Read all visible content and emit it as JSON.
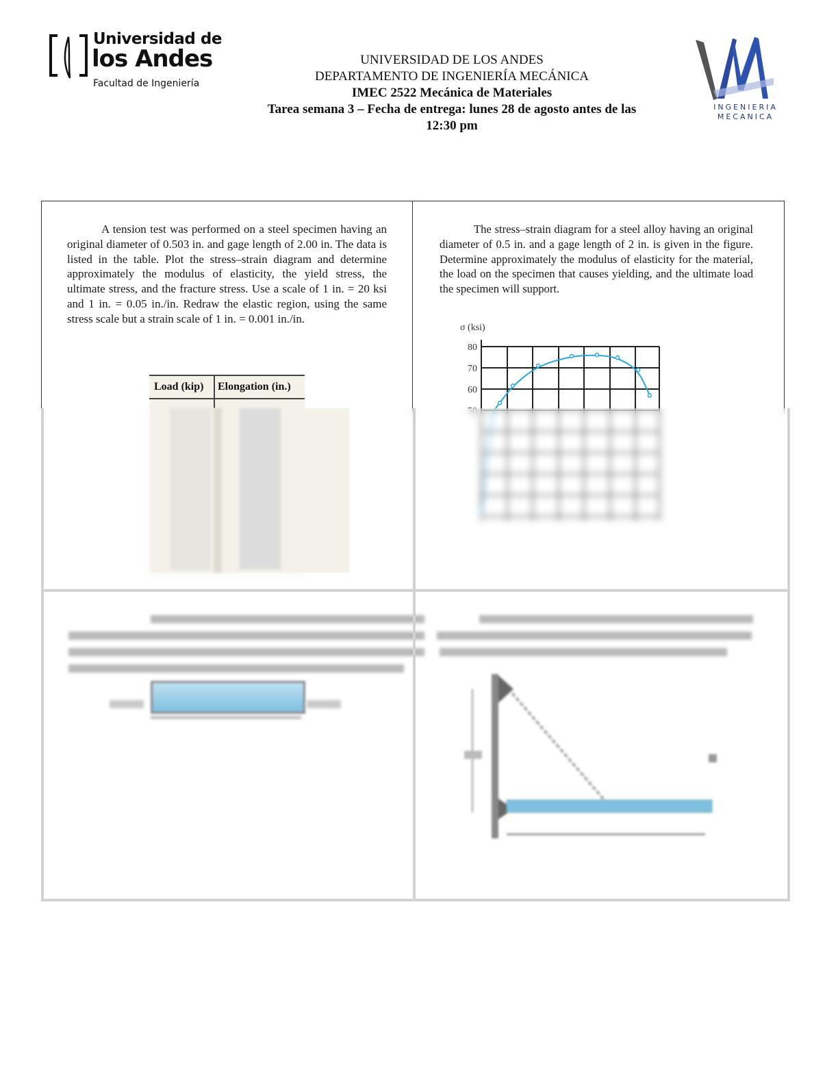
{
  "header": {
    "logo_left": {
      "line1": "Universidad de",
      "line2": "los Andes",
      "line3": "Facultad de Ingeniería"
    },
    "logo_right": {
      "line1": "INGENIERIA",
      "line2": "MECANICA"
    },
    "title_lines": [
      "UNIVERSIDAD DE LOS ANDES",
      "DEPARTAMENTO DE INGENIERÍA MECÁNICA",
      "IMEC 2522 Mecánica de Materiales",
      "Tarea semana 3 – Fecha de entrega: lunes 28 de agosto antes de las",
      "12:30 pm"
    ]
  },
  "problems": [
    {
      "text": "A tension test was performed on a steel specimen having an original diameter of 0.503 in. and gage length of 2.00 in. The data is listed in the table. Plot the stress–strain diagram and determine approximately the modulus of elasticity, the yield stress, the ultimate stress, and the fracture stress. Use a scale of 1 in. = 20 ksi and 1 in. = 0.05 in./in. Redraw the elastic region, using the same stress scale but a strain scale of 1 in. = 0.001 in./in.",
      "table": {
        "columns": [
          "Load (kip)",
          "Elongation (in.)"
        ]
      }
    },
    {
      "text": "The stress–strain diagram for a steel alloy having an original diameter of 0.5 in. and a gage length of 2 in. is given in the figure. Determine approximately the modulus of elasticity for the material, the load on the specimen that causes yielding, and the ultimate load the specimen will support."
    }
  ],
  "chart_data": {
    "type": "line",
    "ylabel": "σ (ksi)",
    "y_ticks": [
      "80",
      "70",
      "60",
      "50"
    ],
    "grid": true,
    "color": "#2aa7dc",
    "stress_values_ksi": [
      53.5,
      61.6,
      71,
      75.5,
      76.1,
      74.8,
      69,
      57
    ]
  }
}
